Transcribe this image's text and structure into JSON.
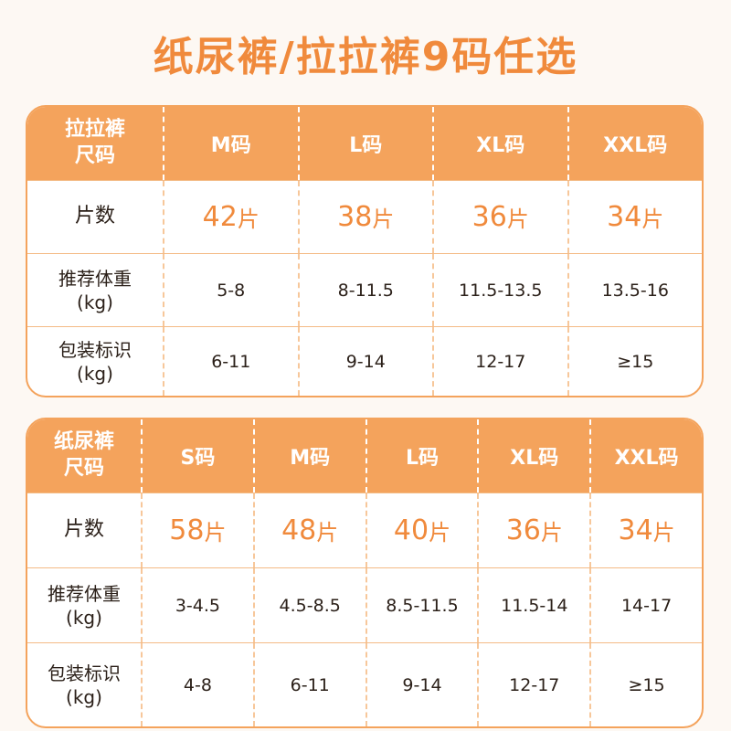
{
  "title": "纸尿裤/拉拉裤9码任选",
  "colors": {
    "accent": "#f4a35c",
    "title": "#f08a3c",
    "border": "#f4bb86"
  },
  "pull_ups": {
    "header_label_line1": "拉拉裤",
    "header_label_line2": "尺码",
    "sizes": [
      "M码",
      "L码",
      "XL码",
      "XXL码"
    ],
    "count_label": "片数",
    "counts": [
      "42",
      "38",
      "36",
      "34"
    ],
    "count_unit": "片",
    "weight_label_line1": "推荐体重",
    "weight_label_line2": "(kg)",
    "weights": [
      "5-8",
      "8-11.5",
      "11.5-13.5",
      "13.5-16"
    ],
    "pack_label_line1": "包装标识",
    "pack_label_line2": "(kg)",
    "packs": [
      "6-11",
      "9-14",
      "12-17",
      "≥15"
    ]
  },
  "diapers": {
    "header_label_line1": "纸尿裤",
    "header_label_line2": "尺码",
    "sizes": [
      "S码",
      "M码",
      "L码",
      "XL码",
      "XXL码"
    ],
    "count_label": "片数",
    "counts": [
      "58",
      "48",
      "40",
      "36",
      "34"
    ],
    "count_unit": "片",
    "weight_label_line1": "推荐体重",
    "weight_label_line2": "(kg)",
    "weights": [
      "3-4.5",
      "4.5-8.5",
      "8.5-11.5",
      "11.5-14",
      "14-17"
    ],
    "pack_label_line1": "包装标识",
    "pack_label_line2": "(kg)",
    "packs": [
      "4-8",
      "6-11",
      "9-14",
      "12-17",
      "≥15"
    ]
  }
}
